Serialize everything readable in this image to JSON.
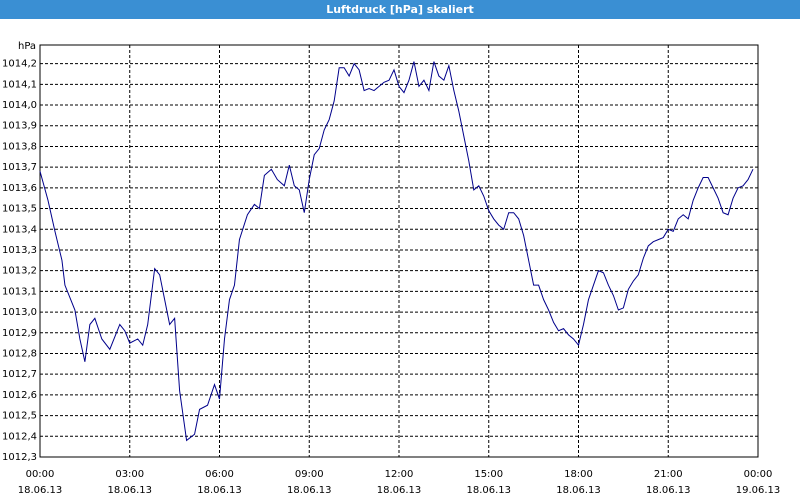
{
  "window": {
    "title": "Luftdruck [hPa] skaliert"
  },
  "chart_data": {
    "type": "line",
    "ylabel": "hPa",
    "x": [
      0,
      16,
      30,
      44,
      50,
      70,
      80,
      90,
      100,
      110,
      124,
      140,
      160,
      170,
      180,
      196,
      206,
      216,
      230,
      240,
      250,
      260,
      270,
      280,
      294,
      310,
      320,
      336,
      350,
      360,
      370,
      380,
      390,
      400,
      416,
      430,
      440,
      450,
      464,
      476,
      490,
      500,
      510,
      520,
      530,
      540,
      550,
      560,
      570,
      580,
      590,
      600,
      610,
      620,
      630,
      640,
      650,
      660,
      670,
      680,
      690,
      700,
      710,
      720,
      730,
      740,
      750,
      760,
      770,
      780,
      790,
      800,
      810,
      820,
      830,
      840,
      850,
      860,
      870,
      880,
      890,
      900,
      910,
      920,
      930,
      940,
      950,
      960,
      970,
      980,
      990,
      1000,
      1010,
      1020,
      1030,
      1040,
      1050,
      1060,
      1070,
      1080,
      1090,
      1100,
      1110,
      1120,
      1130,
      1140,
      1150,
      1160,
      1170,
      1180,
      1190,
      1200,
      1210,
      1220,
      1230,
      1240,
      1250,
      1260,
      1270,
      1280,
      1290,
      1300,
      1310,
      1320,
      1330,
      1340,
      1350,
      1360,
      1370,
      1380,
      1390,
      1400,
      1410,
      1420,
      1430
    ],
    "series": [
      {
        "color": "#00008b",
        "values": [
          1013.68,
          1013.54,
          1013.39,
          1013.25,
          1013.13,
          1013.01,
          1012.87,
          1012.76,
          1012.94,
          1012.97,
          1012.87,
          1012.82,
          1012.94,
          1012.91,
          1012.85,
          1012.87,
          1012.84,
          1012.94,
          1013.21,
          1013.18,
          1013.06,
          1012.94,
          1012.97,
          1012.62,
          1012.38,
          1012.41,
          1012.53,
          1012.55,
          1012.65,
          1012.58,
          1012.87,
          1013.06,
          1013.13,
          1013.35,
          1013.47,
          1013.52,
          1013.5,
          1013.66,
          1013.69,
          1013.64,
          1013.61,
          1013.71,
          1013.61,
          1013.59,
          1013.48,
          1013.64,
          1013.76,
          1013.79,
          1013.88,
          1013.93,
          1014.02,
          1014.18,
          1014.18,
          1014.14,
          1014.2,
          1014.17,
          1014.07,
          1014.08,
          1014.07,
          1014.09,
          1014.11,
          1014.12,
          1014.17,
          1014.09,
          1014.06,
          1014.12,
          1014.21,
          1014.09,
          1014.12,
          1014.07,
          1014.21,
          1014.14,
          1014.12,
          1014.19,
          1014.07,
          1013.97,
          1013.85,
          1013.73,
          1013.59,
          1013.61,
          1013.56,
          1013.49,
          1013.45,
          1013.42,
          1013.4,
          1013.48,
          1013.48,
          1013.45,
          1013.37,
          1013.25,
          1013.13,
          1013.13,
          1013.06,
          1013.01,
          1012.95,
          1012.91,
          1012.92,
          1012.89,
          1012.87,
          1012.84,
          1012.94,
          1013.06,
          1013.13,
          1013.2,
          1013.19,
          1013.13,
          1013.08,
          1013.01,
          1013.02,
          1013.11,
          1013.15,
          1013.18,
          1013.26,
          1013.32,
          1013.34,
          1013.35,
          1013.36,
          1013.4,
          1013.39,
          1013.45,
          1013.47,
          1013.45,
          1013.54,
          1013.6,
          1013.65,
          1013.65,
          1013.6,
          1013.55,
          1013.48,
          1013.47,
          1013.55,
          1013.6,
          1013.61,
          1013.64,
          1013.69
        ]
      }
    ],
    "xlim": [
      0,
      1440
    ],
    "xticks": [
      {
        "value": 0,
        "label": "00:00",
        "date": "18.06.13"
      },
      {
        "value": 180,
        "label": "03:00",
        "date": "18.06.13"
      },
      {
        "value": 360,
        "label": "06:00",
        "date": "18.06.13"
      },
      {
        "value": 540,
        "label": "09:00",
        "date": "18.06.13"
      },
      {
        "value": 720,
        "label": "12:00",
        "date": "18.06.13"
      },
      {
        "value": 900,
        "label": "15:00",
        "date": "18.06.13"
      },
      {
        "value": 1080,
        "label": "18:00",
        "date": "18.06.13"
      },
      {
        "value": 1260,
        "label": "21:00",
        "date": "18.06.13"
      },
      {
        "value": 1440,
        "label": "00:00",
        "date": "19.06.13"
      }
    ],
    "ylim": [
      1012.3,
      1014.29
    ],
    "yticks": [
      {
        "value": 1012.3,
        "label": "1012,3"
      },
      {
        "value": 1012.4,
        "label": "1012,4"
      },
      {
        "value": 1012.5,
        "label": "1012,5"
      },
      {
        "value": 1012.6,
        "label": "1012,6"
      },
      {
        "value": 1012.7,
        "label": "1012,7"
      },
      {
        "value": 1012.8,
        "label": "1012,8"
      },
      {
        "value": 1012.9,
        "label": "1012,9"
      },
      {
        "value": 1013.0,
        "label": "1013,0"
      },
      {
        "value": 1013.1,
        "label": "1013,1"
      },
      {
        "value": 1013.2,
        "label": "1013,2"
      },
      {
        "value": 1013.3,
        "label": "1013,3"
      },
      {
        "value": 1013.4,
        "label": "1013,4"
      },
      {
        "value": 1013.5,
        "label": "1013,5"
      },
      {
        "value": 1013.6,
        "label": "1013,6"
      },
      {
        "value": 1013.7,
        "label": "1013,7"
      },
      {
        "value": 1013.8,
        "label": "1013,8"
      },
      {
        "value": 1013.9,
        "label": "1013,9"
      },
      {
        "value": 1014.0,
        "label": "1014,0"
      },
      {
        "value": 1014.1,
        "label": "1014,1"
      },
      {
        "value": 1014.2,
        "label": "1014,2"
      }
    ],
    "grid": true
  }
}
